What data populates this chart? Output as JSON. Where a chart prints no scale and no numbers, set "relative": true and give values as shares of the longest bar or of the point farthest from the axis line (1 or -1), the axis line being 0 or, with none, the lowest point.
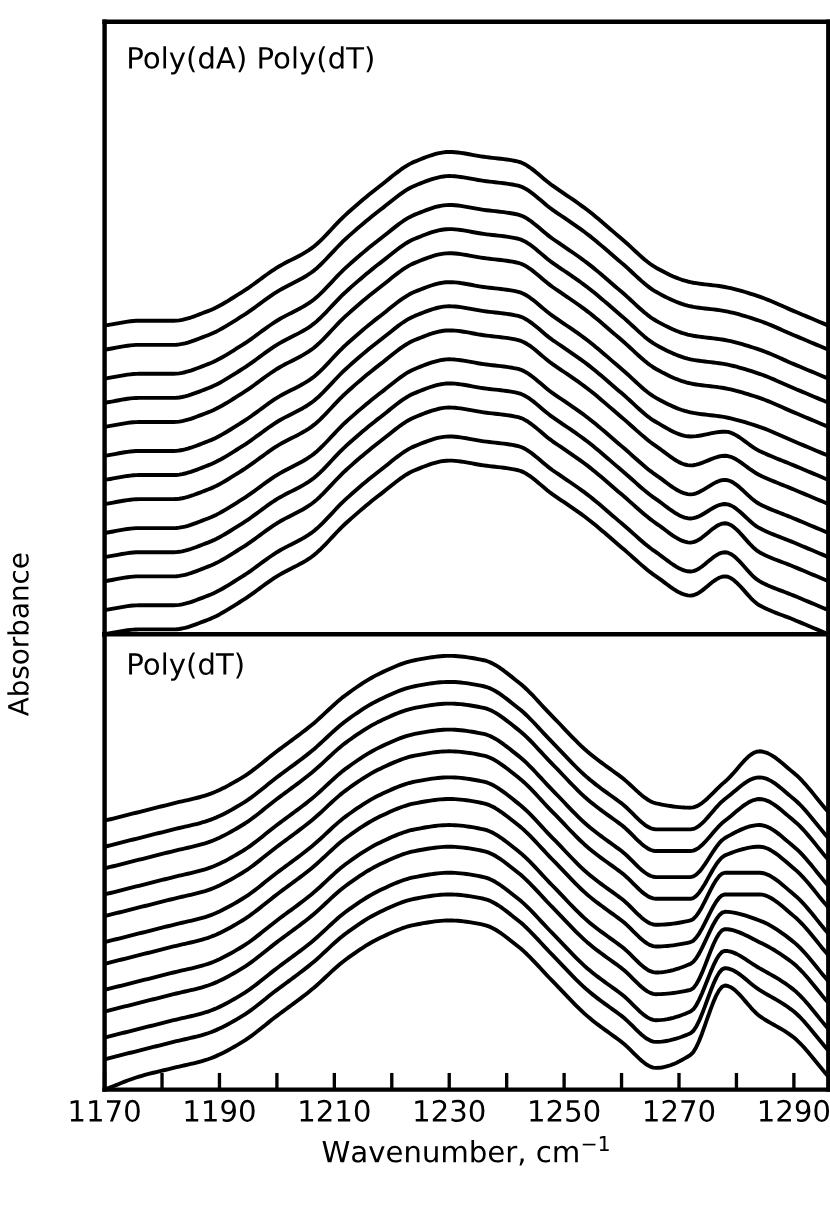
{
  "chart_data": [
    {
      "type": "line",
      "title": "Poly(dA) Poly(dT)",
      "ylabel": "Absorbance",
      "relative": true,
      "xlim": [
        1170,
        1296
      ],
      "tick_labels": false,
      "grid": false,
      "legend": false,
      "marker": "none",
      "line_style": "solid",
      "x": [
        1170,
        1176,
        1182,
        1188,
        1194,
        1200,
        1206,
        1212,
        1218,
        1224,
        1230,
        1236,
        1242,
        1248,
        1254,
        1260,
        1266,
        1272,
        1278,
        1284,
        1290,
        1296
      ],
      "series": [
        {
          "color": "#000000",
          "values": [
            0.64,
            0.65,
            0.65,
            0.67,
            0.71,
            0.76,
            0.8,
            0.87,
            0.93,
            0.98,
            1.0,
            0.99,
            0.98,
            0.93,
            0.88,
            0.82,
            0.76,
            0.73,
            0.72,
            0.7,
            0.67,
            0.64
          ]
        },
        {
          "color": "#000000",
          "values": [
            0.59,
            0.6,
            0.6,
            0.62,
            0.66,
            0.71,
            0.75,
            0.82,
            0.88,
            0.93,
            0.95,
            0.94,
            0.93,
            0.88,
            0.83,
            0.77,
            0.71,
            0.68,
            0.67,
            0.65,
            0.62,
            0.59
          ]
        },
        {
          "color": "#000000",
          "values": [
            0.53,
            0.54,
            0.54,
            0.56,
            0.6,
            0.65,
            0.69,
            0.76,
            0.82,
            0.87,
            0.89,
            0.88,
            0.87,
            0.82,
            0.77,
            0.71,
            0.65,
            0.62,
            0.61,
            0.59,
            0.56,
            0.53
          ]
        },
        {
          "color": "#000000",
          "values": [
            0.48,
            0.49,
            0.49,
            0.51,
            0.55,
            0.6,
            0.64,
            0.71,
            0.77,
            0.82,
            0.84,
            0.83,
            0.82,
            0.77,
            0.72,
            0.66,
            0.6,
            0.57,
            0.56,
            0.54,
            0.51,
            0.48
          ]
        },
        {
          "color": "#000000",
          "values": [
            0.43,
            0.44,
            0.44,
            0.46,
            0.5,
            0.55,
            0.59,
            0.66,
            0.72,
            0.77,
            0.79,
            0.78,
            0.77,
            0.72,
            0.67,
            0.61,
            0.55,
            0.52,
            0.51,
            0.49,
            0.46,
            0.43
          ]
        },
        {
          "color": "#000000",
          "values": [
            0.37,
            0.38,
            0.38,
            0.4,
            0.44,
            0.49,
            0.53,
            0.6,
            0.66,
            0.71,
            0.73,
            0.72,
            0.71,
            0.66,
            0.61,
            0.55,
            0.49,
            0.46,
            0.45,
            0.43,
            0.4,
            0.37
          ]
        },
        {
          "color": "#000000",
          "values": [
            0.32,
            0.33,
            0.33,
            0.35,
            0.39,
            0.44,
            0.48,
            0.55,
            0.61,
            0.66,
            0.68,
            0.67,
            0.66,
            0.61,
            0.56,
            0.5,
            0.44,
            0.41,
            0.42,
            0.38,
            0.35,
            0.32
          ]
        },
        {
          "color": "#000000",
          "values": [
            0.27,
            0.28,
            0.28,
            0.3,
            0.34,
            0.39,
            0.43,
            0.5,
            0.56,
            0.61,
            0.63,
            0.62,
            0.61,
            0.56,
            0.51,
            0.45,
            0.39,
            0.35,
            0.37,
            0.33,
            0.3,
            0.27
          ]
        },
        {
          "color": "#000000",
          "values": [
            0.21,
            0.22,
            0.22,
            0.24,
            0.28,
            0.33,
            0.37,
            0.44,
            0.5,
            0.55,
            0.57,
            0.56,
            0.55,
            0.5,
            0.45,
            0.39,
            0.33,
            0.29,
            0.32,
            0.27,
            0.24,
            0.21
          ]
        },
        {
          "color": "#000000",
          "values": [
            0.16,
            0.17,
            0.17,
            0.19,
            0.23,
            0.28,
            0.32,
            0.39,
            0.45,
            0.5,
            0.52,
            0.51,
            0.5,
            0.45,
            0.4,
            0.34,
            0.28,
            0.24,
            0.27,
            0.22,
            0.19,
            0.16
          ]
        },
        {
          "color": "#000000",
          "values": [
            0.11,
            0.12,
            0.12,
            0.14,
            0.18,
            0.23,
            0.27,
            0.34,
            0.4,
            0.45,
            0.47,
            0.46,
            0.45,
            0.4,
            0.35,
            0.29,
            0.23,
            0.19,
            0.23,
            0.17,
            0.14,
            0.11
          ]
        },
        {
          "color": "#000000",
          "values": [
            0.05,
            0.06,
            0.06,
            0.08,
            0.12,
            0.17,
            0.21,
            0.28,
            0.34,
            0.39,
            0.41,
            0.4,
            0.39,
            0.34,
            0.29,
            0.23,
            0.17,
            0.13,
            0.17,
            0.11,
            0.08,
            0.05
          ]
        },
        {
          "color": "#000000",
          "values": [
            0.0,
            0.01,
            0.01,
            0.03,
            0.07,
            0.12,
            0.16,
            0.23,
            0.29,
            0.34,
            0.36,
            0.35,
            0.34,
            0.29,
            0.24,
            0.18,
            0.12,
            0.08,
            0.12,
            0.06,
            0.03,
            0.0
          ]
        }
      ]
    },
    {
      "type": "line",
      "title": "Poly(dT)",
      "xlabel": "Wavenumber, cm$^{−1}$",
      "relative": true,
      "xlim": [
        1170,
        1296
      ],
      "tick_labels": "x",
      "grid": false,
      "legend": false,
      "marker": "none",
      "line_style": "solid",
      "xticks": [
        1170,
        {
          "value": 1180,
          "label": null
        },
        1190,
        {
          "value": 1200,
          "label": null
        },
        1210,
        {
          "value": 1220,
          "label": null
        },
        1230,
        {
          "value": 1240,
          "label": null
        },
        1250,
        {
          "value": 1260,
          "label": null
        },
        1270,
        {
          "value": 1280,
          "label": null
        },
        1290
      ],
      "x": [
        1170,
        1176,
        1182,
        1188,
        1194,
        1200,
        1206,
        1212,
        1218,
        1224,
        1230,
        1236,
        1242,
        1248,
        1254,
        1260,
        1266,
        1272,
        1278,
        1284,
        1290,
        1296
      ],
      "series": [
        {
          "color": "#000000",
          "values": [
            0.62,
            0.64,
            0.66,
            0.68,
            0.72,
            0.78,
            0.84,
            0.91,
            0.96,
            0.99,
            1.0,
            0.99,
            0.94,
            0.86,
            0.78,
            0.72,
            0.66,
            0.65,
            0.71,
            0.78,
            0.73,
            0.64
          ]
        },
        {
          "color": "#000000",
          "values": [
            0.56,
            0.58,
            0.6,
            0.62,
            0.66,
            0.72,
            0.78,
            0.85,
            0.9,
            0.93,
            0.94,
            0.93,
            0.88,
            0.8,
            0.72,
            0.66,
            0.6,
            0.6,
            0.67,
            0.72,
            0.67,
            0.58
          ]
        },
        {
          "color": "#000000",
          "values": [
            0.51,
            0.53,
            0.55,
            0.57,
            0.61,
            0.67,
            0.73,
            0.8,
            0.85,
            0.88,
            0.89,
            0.88,
            0.83,
            0.75,
            0.67,
            0.61,
            0.55,
            0.55,
            0.62,
            0.67,
            0.62,
            0.53
          ]
        },
        {
          "color": "#000000",
          "values": [
            0.45,
            0.47,
            0.49,
            0.51,
            0.55,
            0.61,
            0.67,
            0.74,
            0.79,
            0.82,
            0.83,
            0.82,
            0.77,
            0.69,
            0.61,
            0.55,
            0.49,
            0.49,
            0.58,
            0.61,
            0.56,
            0.47
          ]
        },
        {
          "color": "#000000",
          "values": [
            0.4,
            0.42,
            0.44,
            0.46,
            0.5,
            0.56,
            0.62,
            0.69,
            0.74,
            0.77,
            0.78,
            0.77,
            0.72,
            0.64,
            0.56,
            0.5,
            0.44,
            0.44,
            0.54,
            0.56,
            0.51,
            0.42
          ]
        },
        {
          "color": "#000000",
          "values": [
            0.34,
            0.36,
            0.38,
            0.4,
            0.44,
            0.5,
            0.56,
            0.63,
            0.68,
            0.71,
            0.72,
            0.71,
            0.66,
            0.58,
            0.5,
            0.44,
            0.38,
            0.39,
            0.5,
            0.5,
            0.45,
            0.36
          ]
        },
        {
          "color": "#000000",
          "values": [
            0.29,
            0.31,
            0.33,
            0.35,
            0.39,
            0.45,
            0.51,
            0.58,
            0.63,
            0.66,
            0.67,
            0.66,
            0.61,
            0.53,
            0.45,
            0.39,
            0.33,
            0.34,
            0.45,
            0.45,
            0.4,
            0.31
          ]
        },
        {
          "color": "#000000",
          "values": [
            0.23,
            0.25,
            0.27,
            0.29,
            0.33,
            0.39,
            0.45,
            0.52,
            0.57,
            0.6,
            0.61,
            0.6,
            0.55,
            0.47,
            0.39,
            0.33,
            0.27,
            0.29,
            0.41,
            0.39,
            0.34,
            0.25
          ]
        },
        {
          "color": "#000000",
          "values": [
            0.18,
            0.2,
            0.22,
            0.24,
            0.28,
            0.34,
            0.4,
            0.47,
            0.52,
            0.55,
            0.56,
            0.55,
            0.5,
            0.42,
            0.34,
            0.28,
            0.22,
            0.23,
            0.37,
            0.34,
            0.29,
            0.2
          ]
        },
        {
          "color": "#000000",
          "values": [
            0.12,
            0.14,
            0.16,
            0.18,
            0.22,
            0.28,
            0.34,
            0.41,
            0.46,
            0.49,
            0.5,
            0.49,
            0.44,
            0.36,
            0.28,
            0.22,
            0.16,
            0.18,
            0.32,
            0.28,
            0.23,
            0.14
          ]
        },
        {
          "color": "#000000",
          "values": [
            0.07,
            0.09,
            0.11,
            0.13,
            0.17,
            0.23,
            0.29,
            0.36,
            0.41,
            0.44,
            0.45,
            0.44,
            0.39,
            0.31,
            0.23,
            0.17,
            0.11,
            0.13,
            0.28,
            0.23,
            0.18,
            0.09
          ]
        },
        {
          "color": "#000000",
          "values": [
            0.0,
            0.03,
            0.05,
            0.07,
            0.11,
            0.17,
            0.23,
            0.3,
            0.35,
            0.38,
            0.39,
            0.38,
            0.33,
            0.25,
            0.17,
            0.11,
            0.05,
            0.08,
            0.24,
            0.17,
            0.12,
            0.03
          ]
        }
      ]
    }
  ]
}
